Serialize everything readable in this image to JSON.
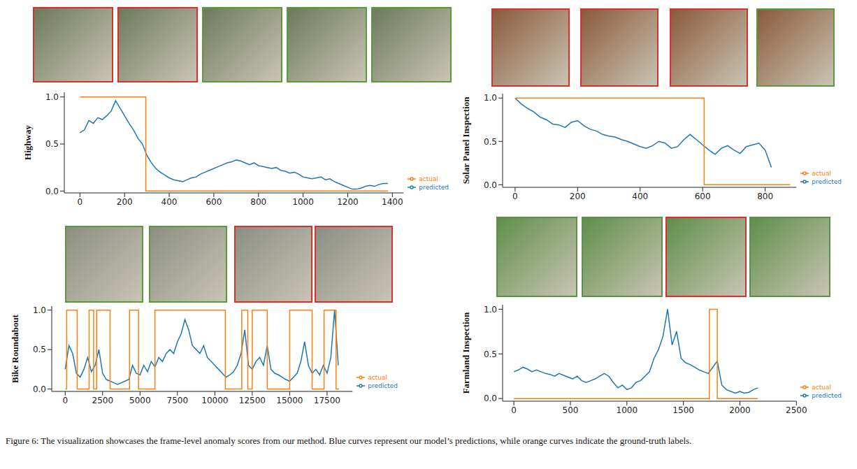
{
  "caption": "Figure 6: The visualization showcases the frame-level anomaly scores from our method. Blue curves represent our model’s predictions, while orange curves indicate the ground-truth labels.",
  "chart_data": [
    {
      "type": "line",
      "ylabel": "Highway",
      "xlim": [
        -70,
        1450
      ],
      "xticks": [
        0,
        200,
        400,
        600,
        800,
        1000,
        1200,
        1400
      ],
      "ylim": [
        -0.02,
        1.05
      ],
      "yticks": [
        {
          "value": 0,
          "label": "0.0"
        },
        {
          "value": 0.5,
          "label": "0.5"
        },
        {
          "value": 1,
          "label": "1.0"
        }
      ],
      "legend": "lower right",
      "series": [
        {
          "name": "predicted",
          "color": "#1f77b4",
          "x": [
            0,
            20,
            40,
            60,
            80,
            100,
            120,
            140,
            160,
            180,
            200,
            220,
            240,
            260,
            280,
            300,
            320,
            340,
            360,
            380,
            400,
            420,
            440,
            460,
            480,
            500,
            520,
            540,
            560,
            580,
            600,
            620,
            640,
            660,
            680,
            700,
            720,
            740,
            760,
            780,
            800,
            820,
            840,
            860,
            880,
            900,
            920,
            940,
            960,
            980,
            1000,
            1020,
            1040,
            1060,
            1080,
            1100,
            1120,
            1140,
            1160,
            1180,
            1200,
            1220,
            1240,
            1260,
            1280,
            1300,
            1320,
            1340,
            1360,
            1380
          ],
          "values": [
            0.62,
            0.65,
            0.75,
            0.72,
            0.78,
            0.76,
            0.8,
            0.85,
            0.96,
            0.88,
            0.8,
            0.72,
            0.65,
            0.56,
            0.5,
            0.38,
            0.3,
            0.24,
            0.2,
            0.17,
            0.14,
            0.12,
            0.11,
            0.1,
            0.12,
            0.14,
            0.15,
            0.18,
            0.2,
            0.22,
            0.24,
            0.26,
            0.28,
            0.3,
            0.31,
            0.33,
            0.32,
            0.3,
            0.28,
            0.3,
            0.27,
            0.26,
            0.25,
            0.24,
            0.25,
            0.22,
            0.21,
            0.19,
            0.2,
            0.18,
            0.15,
            0.14,
            0.13,
            0.14,
            0.15,
            0.12,
            0.13,
            0.1,
            0.08,
            0.06,
            0.04,
            0.02,
            0.02,
            0.03,
            0.05,
            0.06,
            0.05,
            0.07,
            0.08,
            0.08
          ]
        },
        {
          "name": "actual",
          "color": "#ff7f0e",
          "x": [
            0,
            295,
            295,
            1380
          ],
          "values": [
            1,
            1,
            0,
            0
          ]
        }
      ]
    },
    {
      "type": "line",
      "ylabel": "Solar Panel Inspection",
      "xlim": [
        -40,
        900
      ],
      "xticks": [
        0,
        200,
        400,
        600,
        800
      ],
      "ylim": [
        -0.03,
        1.05
      ],
      "yticks": [
        {
          "value": 0,
          "label": "0.0"
        },
        {
          "value": 0.5,
          "label": "0.5"
        },
        {
          "value": 1,
          "label": "1.0"
        }
      ],
      "legend": "lower right",
      "series": [
        {
          "name": "predicted",
          "color": "#1f77b4",
          "x": [
            0,
            20,
            40,
            60,
            80,
            100,
            120,
            140,
            160,
            180,
            200,
            220,
            240,
            260,
            280,
            300,
            320,
            340,
            360,
            380,
            400,
            420,
            440,
            460,
            480,
            500,
            520,
            540,
            560,
            580,
            600,
            620,
            640,
            660,
            680,
            700,
            720,
            740,
            760,
            780,
            800,
            820
          ],
          "values": [
            1.0,
            0.93,
            0.88,
            0.84,
            0.78,
            0.75,
            0.7,
            0.69,
            0.66,
            0.72,
            0.74,
            0.68,
            0.64,
            0.62,
            0.58,
            0.56,
            0.55,
            0.52,
            0.5,
            0.47,
            0.44,
            0.42,
            0.45,
            0.5,
            0.48,
            0.42,
            0.44,
            0.52,
            0.58,
            0.52,
            0.46,
            0.4,
            0.35,
            0.42,
            0.45,
            0.4,
            0.36,
            0.44,
            0.46,
            0.48,
            0.4,
            0.2
          ]
        },
        {
          "name": "actual",
          "color": "#ff7f0e",
          "x": [
            0,
            605,
            605,
            880
          ],
          "values": [
            1,
            1,
            0,
            0
          ]
        }
      ]
    },
    {
      "type": "line",
      "ylabel": "Bike Roundabout",
      "xlim": [
        -900,
        19200
      ],
      "xticks": [
        0,
        2500,
        5000,
        7500,
        10000,
        12500,
        15000,
        17500
      ],
      "ylim": [
        -0.03,
        1.05
      ],
      "yticks": [
        {
          "value": 0,
          "label": "0.0"
        },
        {
          "value": 0.5,
          "label": "0.5"
        },
        {
          "value": 1,
          "label": "1.0"
        }
      ],
      "legend": "lower right",
      "series": [
        {
          "name": "predicted",
          "color": "#1f77b4",
          "x": [
            0,
            250,
            500,
            750,
            1000,
            1250,
            1500,
            1750,
            2000,
            2250,
            2500,
            2750,
            3000,
            3250,
            3500,
            3750,
            4000,
            4250,
            4500,
            4750,
            5000,
            5250,
            5500,
            5750,
            6000,
            6250,
            6500,
            6750,
            7000,
            7250,
            7500,
            7750,
            8000,
            8250,
            8500,
            8750,
            9000,
            9250,
            9500,
            9750,
            10000,
            10250,
            10500,
            10750,
            11000,
            11250,
            11500,
            11750,
            12000,
            12250,
            12500,
            12750,
            13000,
            13250,
            13500,
            13750,
            14000,
            14250,
            14500,
            14750,
            15000,
            15250,
            15500,
            15750,
            16000,
            16250,
            16500,
            16750,
            17000,
            17250,
            17500,
            17750,
            18000,
            18250
          ],
          "values": [
            0.25,
            0.55,
            0.45,
            0.2,
            0.15,
            0.25,
            0.4,
            0.22,
            0.3,
            0.5,
            0.2,
            0.12,
            0.1,
            0.08,
            0.06,
            0.08,
            0.1,
            0.12,
            0.3,
            0.2,
            0.18,
            0.3,
            0.22,
            0.35,
            0.28,
            0.4,
            0.35,
            0.45,
            0.5,
            0.45,
            0.6,
            0.7,
            0.88,
            0.75,
            0.55,
            0.5,
            0.45,
            0.55,
            0.4,
            0.35,
            0.3,
            0.25,
            0.2,
            0.15,
            0.18,
            0.22,
            0.3,
            0.45,
            0.75,
            0.3,
            0.25,
            0.35,
            0.4,
            0.3,
            0.55,
            0.25,
            0.2,
            0.18,
            0.15,
            0.12,
            0.1,
            0.15,
            0.2,
            0.35,
            0.6,
            0.3,
            0.2,
            0.25,
            0.18,
            0.3,
            0.2,
            0.4,
            1.0,
            0.3
          ]
        },
        {
          "name": "actual",
          "color": "#ff7f0e",
          "x": [
            0,
            100,
            100,
            800,
            800,
            1600,
            1600,
            1900,
            1900,
            2100,
            2100,
            3000,
            3000,
            4300,
            4300,
            4900,
            4900,
            6000,
            6000,
            10700,
            10700,
            11800,
            11800,
            12200,
            12200,
            12500,
            12500,
            13500,
            13500,
            15000,
            15000,
            16500,
            16500,
            17300,
            17300,
            18100,
            18100,
            18300
          ],
          "values": [
            0,
            0,
            1,
            1,
            0,
            0,
            1,
            1,
            0,
            0,
            1,
            1,
            0,
            0,
            1,
            1,
            0,
            0,
            1,
            1,
            0,
            0,
            1,
            1,
            0,
            0,
            1,
            1,
            0,
            0,
            1,
            1,
            0,
            0,
            1,
            1,
            0,
            0
          ]
        }
      ]
    },
    {
      "type": "line",
      "ylabel": "Farmland Inspection",
      "xlim": [
        -100,
        2500
      ],
      "xticks": [
        0,
        500,
        1000,
        1500,
        2000,
        2500
      ],
      "ylim": [
        -0.03,
        1.05
      ],
      "yticks": [
        {
          "value": 0,
          "label": "0.0"
        },
        {
          "value": 0.5,
          "label": "0.5"
        },
        {
          "value": 1,
          "label": "1.0"
        }
      ],
      "legend": "lower right",
      "series": [
        {
          "name": "predicted",
          "color": "#1f77b4",
          "x": [
            0,
            40,
            80,
            120,
            160,
            200,
            240,
            280,
            320,
            360,
            400,
            440,
            480,
            520,
            560,
            600,
            640,
            680,
            720,
            760,
            800,
            840,
            880,
            920,
            960,
            1000,
            1040,
            1080,
            1120,
            1160,
            1200,
            1240,
            1280,
            1320,
            1360,
            1400,
            1440,
            1480,
            1520,
            1560,
            1600,
            1640,
            1680,
            1720,
            1760,
            1800,
            1840,
            1880,
            1920,
            1960,
            2000,
            2040,
            2080,
            2120,
            2160
          ],
          "values": [
            0.3,
            0.32,
            0.35,
            0.33,
            0.3,
            0.32,
            0.3,
            0.28,
            0.27,
            0.25,
            0.28,
            0.26,
            0.24,
            0.22,
            0.25,
            0.2,
            0.18,
            0.2,
            0.22,
            0.25,
            0.28,
            0.25,
            0.18,
            0.12,
            0.15,
            0.1,
            0.12,
            0.18,
            0.2,
            0.25,
            0.3,
            0.45,
            0.55,
            0.7,
            1.0,
            0.6,
            0.75,
            0.45,
            0.4,
            0.38,
            0.35,
            0.32,
            0.3,
            0.28,
            0.35,
            0.42,
            0.15,
            0.1,
            0.08,
            0.06,
            0.08,
            0.06,
            0.07,
            0.1,
            0.12
          ]
        },
        {
          "name": "actual",
          "color": "#ff7f0e",
          "x": [
            0,
            1730,
            1730,
            1800,
            1800,
            2160
          ],
          "values": [
            0,
            0,
            1,
            1,
            0,
            0
          ]
        }
      ]
    }
  ]
}
